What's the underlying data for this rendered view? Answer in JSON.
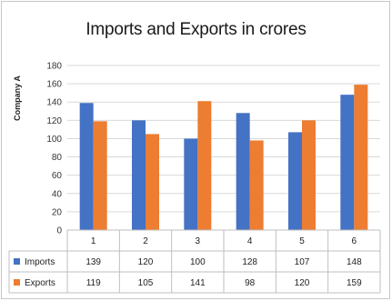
{
  "chart_data": {
    "type": "bar",
    "title": "Imports and Exports in crores",
    "ylabel": "Company A",
    "xlabel": "",
    "categories": [
      "1",
      "2",
      "3",
      "4",
      "5",
      "6"
    ],
    "ylim": [
      0,
      180
    ],
    "yticks": [
      0,
      20,
      40,
      60,
      80,
      100,
      120,
      140,
      160,
      180
    ],
    "grid": true,
    "legend": "data-table",
    "series": [
      {
        "name": "Imports",
        "color": "#4472c4",
        "values": [
          139,
          120,
          100,
          128,
          107,
          148
        ]
      },
      {
        "name": "Exports",
        "color": "#ed7d31",
        "values": [
          119,
          105,
          141,
          98,
          120,
          159
        ]
      }
    ]
  }
}
